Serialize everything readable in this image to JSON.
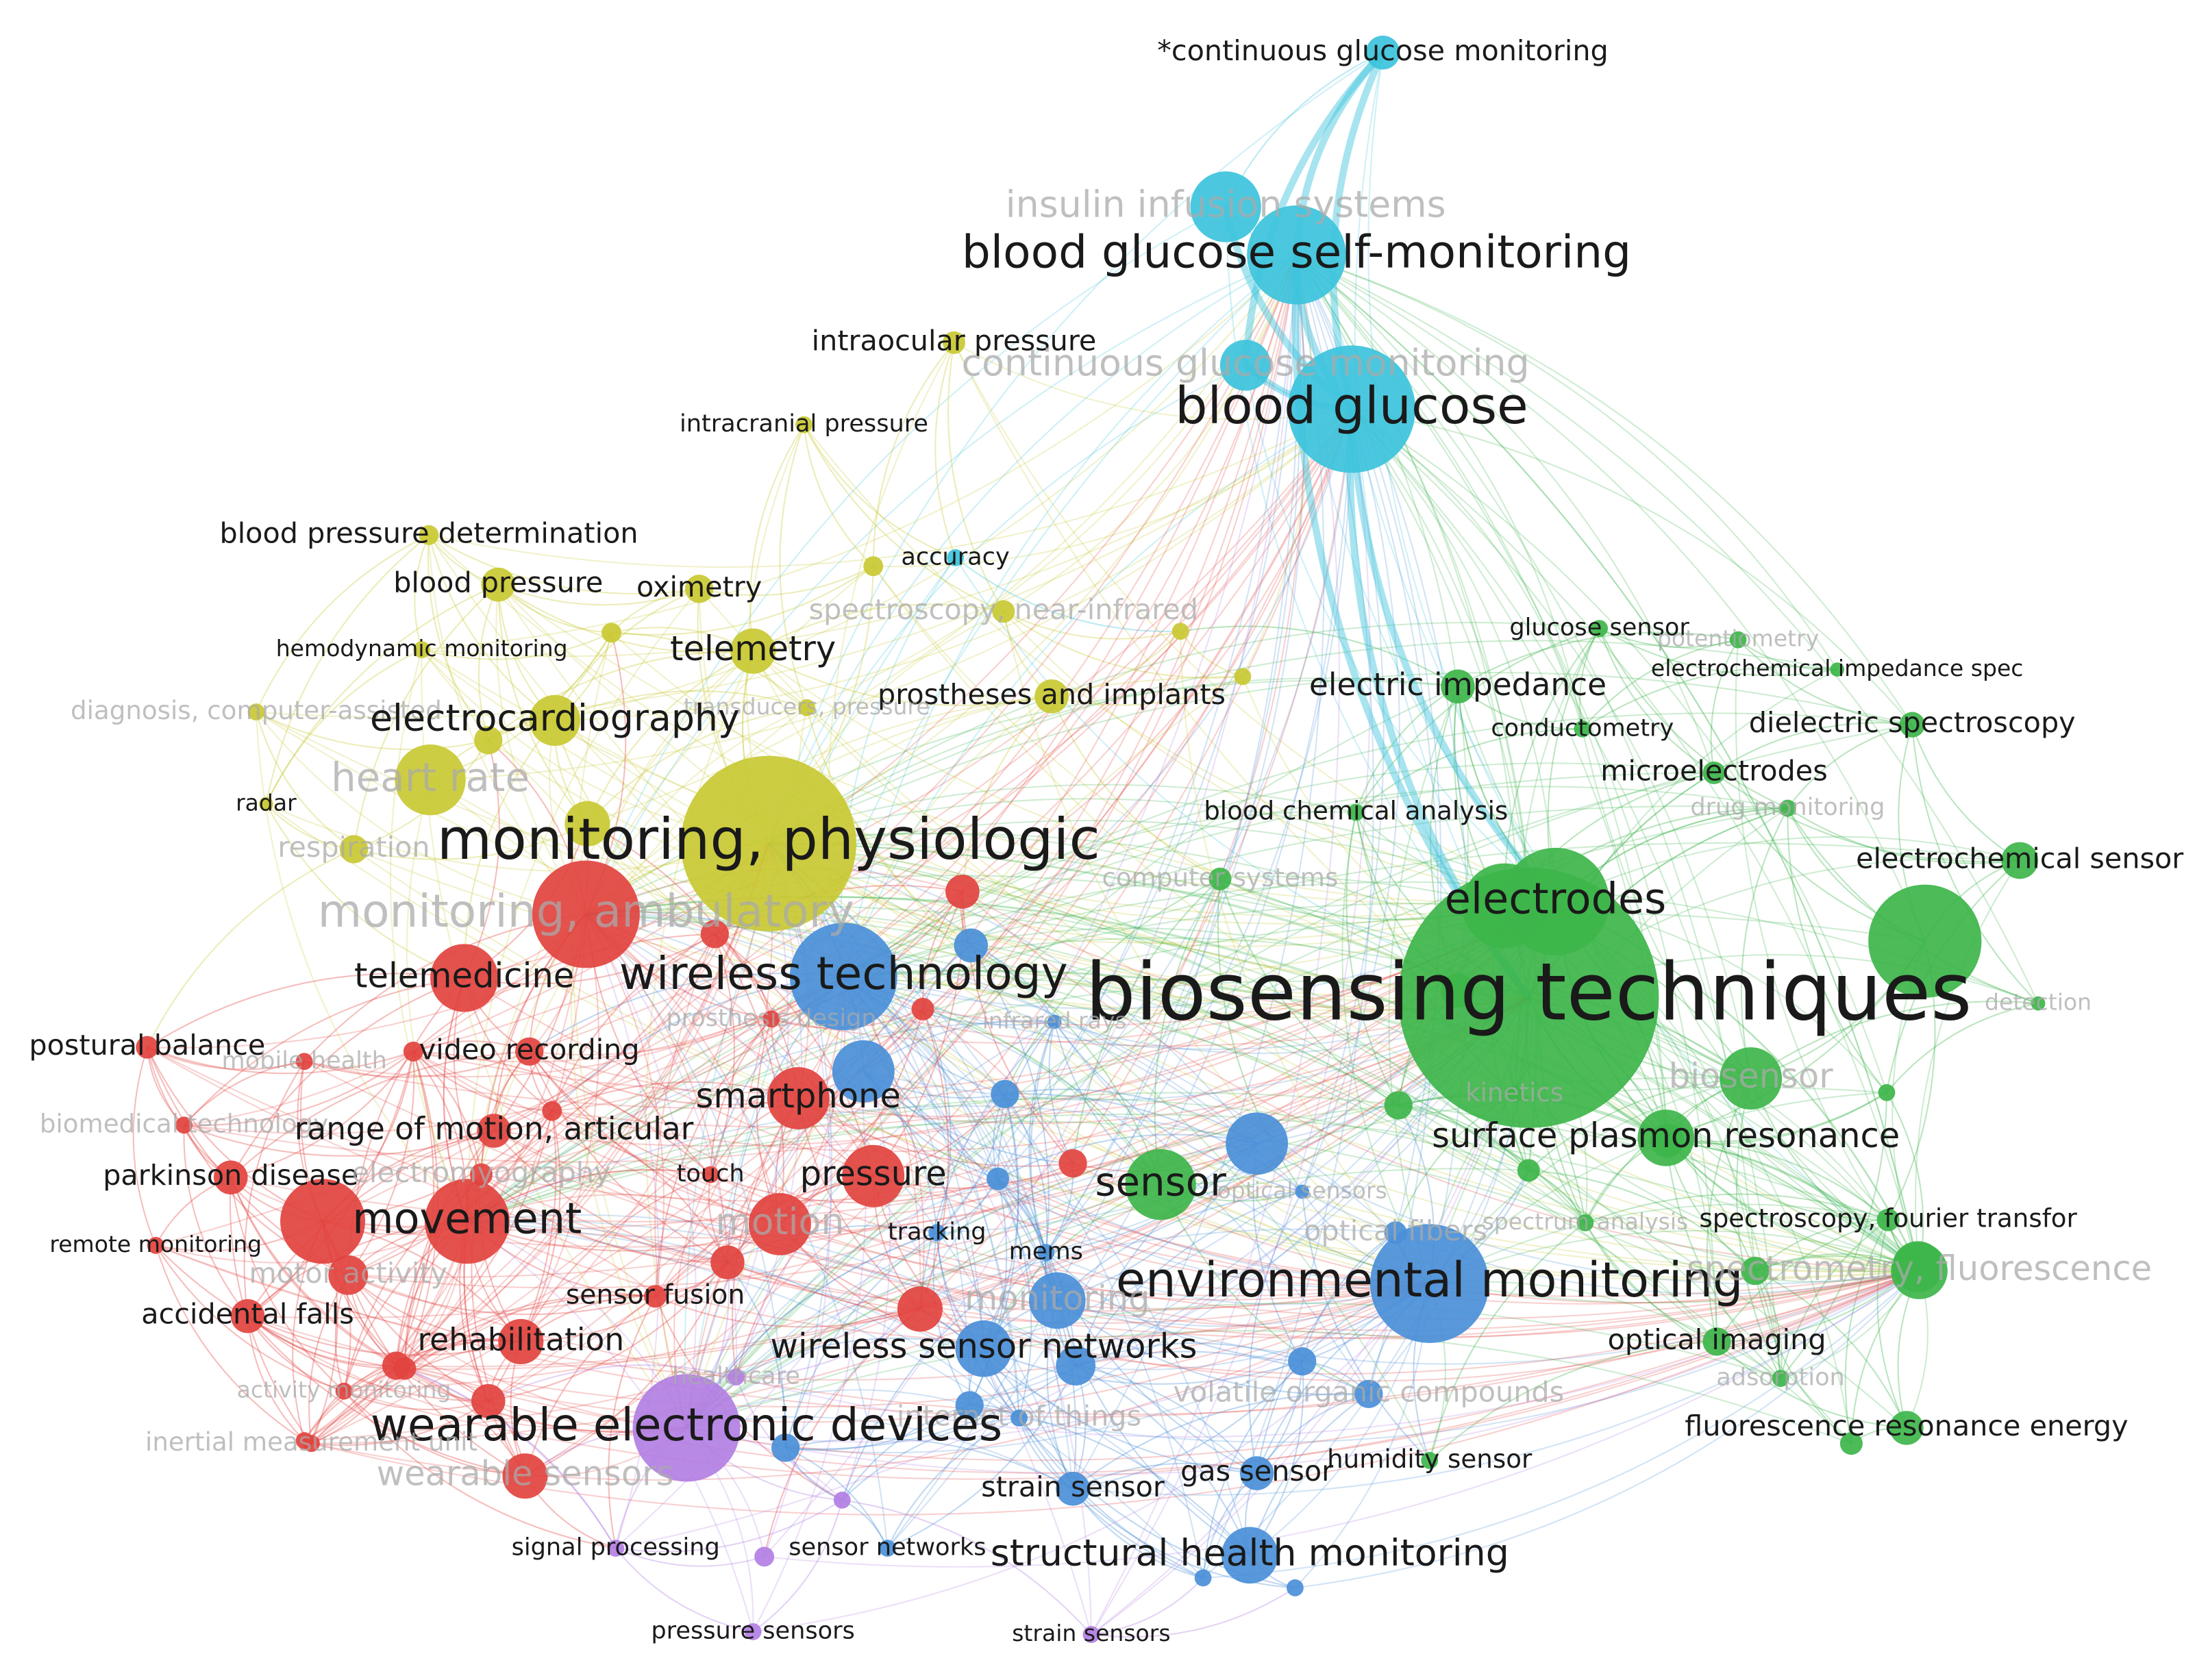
{
  "nodes": [
    {
      "label": "*continuous glucose monitoring"
    },
    {
      "label": "insulin infusion systems"
    },
    {
      "label": "blood glucose self-monitoring"
    },
    {
      "label": "intraocular pressure"
    },
    {
      "label": "continuous glucose monitoring"
    },
    {
      "label": "blood glucose"
    },
    {
      "label": "intracranial pressure"
    },
    {
      "label": "blood pressure determination"
    },
    {
      "label": "blood pressure"
    },
    {
      "label": "oximetry"
    },
    {
      "label": "accuracy"
    },
    {
      "label": "spectroscopy, near-infrared"
    },
    {
      "label": "hemodynamic monitoring"
    },
    {
      "label": "telemetry"
    },
    {
      "label": "glucose sensor"
    },
    {
      "label": "potentiometry"
    },
    {
      "label": "electrochemical impedance spec"
    },
    {
      "label": "electric impedance"
    },
    {
      "label": "prostheses and implants"
    },
    {
      "label": "diagnosis, computer-assisted"
    },
    {
      "label": "transducers, pressure"
    },
    {
      "label": "electrocardiography"
    },
    {
      "label": "conductometry"
    },
    {
      "label": "dielectric spectroscopy"
    },
    {
      "label": "microelectrodes"
    },
    {
      "label": "heart rate"
    },
    {
      "label": "radar"
    },
    {
      "label": "blood chemical analysis"
    },
    {
      "label": "drug monitoring"
    },
    {
      "label": "monitoring, physiologic"
    },
    {
      "label": "respiration"
    },
    {
      "label": "electrochemical sensor"
    },
    {
      "label": "computer systems"
    },
    {
      "label": "electrodes"
    },
    {
      "label": "monitoring, ambulatory"
    },
    {
      "label": "telemedicine"
    },
    {
      "label": "wireless technology"
    },
    {
      "label": "biosensing techniques"
    },
    {
      "label": "detection"
    },
    {
      "label": "prosthesis design"
    },
    {
      "label": "infrared rays"
    },
    {
      "label": "postural balance"
    },
    {
      "label": "mobile health"
    },
    {
      "label": "video recording"
    },
    {
      "label": "biosensor"
    },
    {
      "label": "kinetics"
    },
    {
      "label": "smartphone"
    },
    {
      "label": "biomedical technology"
    },
    {
      "label": "range of motion, articular"
    },
    {
      "label": "surface plasmon resonance"
    },
    {
      "label": "parkinson disease"
    },
    {
      "label": "electromyography"
    },
    {
      "label": "touch"
    },
    {
      "label": "pressure"
    },
    {
      "label": "sensor"
    },
    {
      "label": "optical sensors"
    },
    {
      "label": "movement"
    },
    {
      "label": "motion"
    },
    {
      "label": "spectroscopy, fourier transfor"
    },
    {
      "label": "spectrum analysis"
    },
    {
      "label": "tracking"
    },
    {
      "label": "optical fibers"
    },
    {
      "label": "remote monitoring"
    },
    {
      "label": "mems"
    },
    {
      "label": "motor activity"
    },
    {
      "label": "environmental monitoring"
    },
    {
      "label": "spectrometry, fluorescence"
    },
    {
      "label": "sensor fusion"
    },
    {
      "label": "monitoring"
    },
    {
      "label": "accidental falls"
    },
    {
      "label": "rehabilitation"
    },
    {
      "label": "optical imaging"
    },
    {
      "label": "wireless sensor networks"
    },
    {
      "label": "healthcare"
    },
    {
      "label": "adsorption"
    },
    {
      "label": "activity monitoring"
    },
    {
      "label": "volatile organic compounds"
    },
    {
      "label": "internet of things"
    },
    {
      "label": "wearable electronic devices"
    },
    {
      "label": "fluorescence resonance energy"
    },
    {
      "label": "inertial measurement unit"
    },
    {
      "label": "humidity sensor"
    },
    {
      "label": "wearable sensors"
    },
    {
      "label": "gas sensor"
    },
    {
      "label": "strain sensor"
    },
    {
      "label": "signal processing"
    },
    {
      "label": "sensor networks"
    },
    {
      "label": "structural health monitoring"
    },
    {
      "label": "pressure sensors"
    },
    {
      "label": "strain sensors"
    }
  ]
}
